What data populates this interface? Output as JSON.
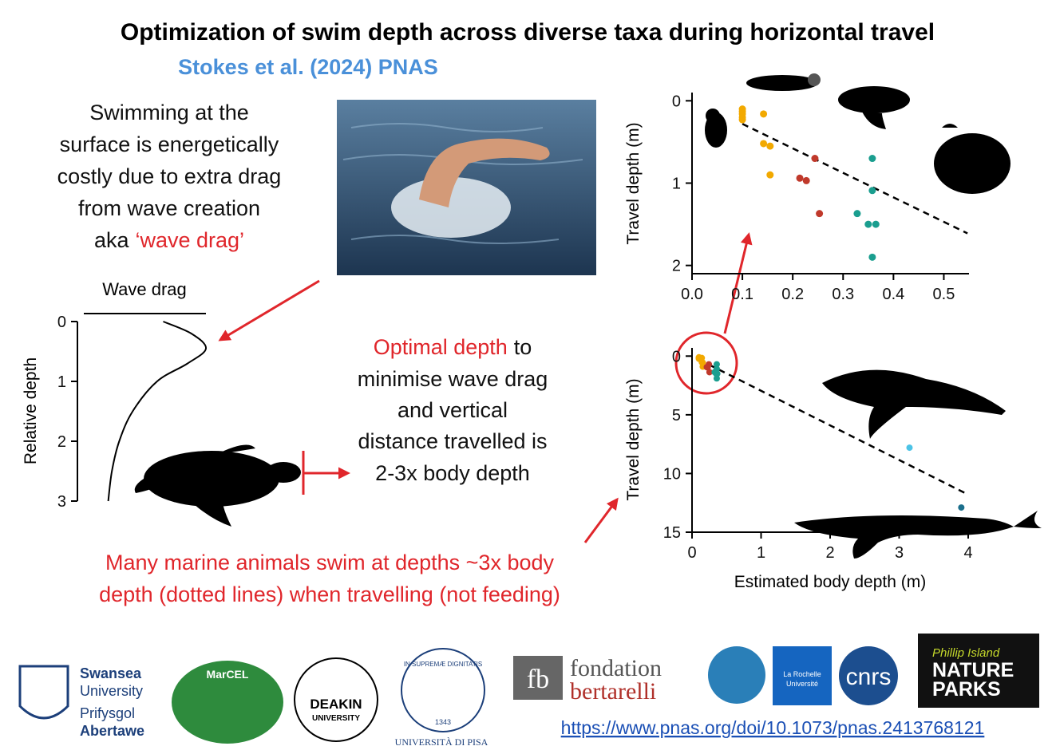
{
  "header": {
    "title": "Optimization of swim depth across diverse taxa during horizontal travel",
    "subtitle": "Stokes et al. (2024) PNAS"
  },
  "intro": {
    "lines": [
      "Swimming at the",
      "surface is energetically",
      "costly due to extra drag",
      "from wave creation",
      "aka"
    ],
    "highlight": "‘wave drag’"
  },
  "optimal": {
    "highlight": "Optimal depth",
    "lines": [
      "to",
      "minimise wave drag",
      "and vertical",
      "distance travelled is",
      "2-3x body depth"
    ]
  },
  "finding": {
    "lines": [
      "Many marine animals swim at depths ~3x body",
      "depth (dotted lines) when travelling (not feeding)"
    ]
  },
  "logos": {
    "swansea": [
      "Swansea",
      "University",
      "Prifysgol",
      "Abertawe"
    ],
    "marcel": "MarCEL",
    "deakin": [
      "DEAKIN",
      "UNIVERSITY"
    ],
    "pisa": [
      "IN SUPREMÆ DIGNITATIS",
      "1343",
      "UNIVERSITÀ DI PISA"
    ],
    "bertarelli": [
      "fb",
      "fondation",
      "bertarelli"
    ],
    "larochelle": [
      "La Rochelle",
      "Université"
    ],
    "cnrs": "cnrs",
    "phillip": [
      "Phillip Island",
      "NATURE",
      "PARKS"
    ]
  },
  "link": "https://www.pnas.org/doi/10.1073/pnas.2413768121",
  "chart_data": [
    {
      "type": "line",
      "title": "Wave drag",
      "y_label": "Relative depth",
      "color": "#000000",
      "x": [
        0.65,
        0.88,
        1.0,
        0.85,
        0.6,
        0.4,
        0.29,
        0.23,
        0.2
      ],
      "values": [
        0,
        0.2,
        0.45,
        0.7,
        1,
        1.5,
        2,
        2.5,
        3
      ],
      "xlim": [
        0,
        1
      ],
      "ylim": [
        0,
        3
      ],
      "yticks": [
        0,
        1,
        2,
        3
      ],
      "y_inverted": true
    },
    {
      "type": "scatter",
      "y_label": "Travel depth (m)",
      "xlim": [
        0,
        0.55
      ],
      "ylim": [
        -0.1,
        2.1
      ],
      "xticks": [
        {
          "value": 0,
          "label": "0.0"
        },
        0.1,
        0.2,
        0.3,
        0.4,
        0.5
      ],
      "yticks": [
        0,
        1,
        2
      ],
      "y_inverted": true,
      "series": [
        {
          "color": "#f2a900",
          "x": [
            0.1,
            0.1,
            0.1,
            0.1,
            0.1,
            0.142,
            0.142,
            0.155,
            0.155
          ],
          "values": [
            0.1,
            0.13,
            0.16,
            0.2,
            0.23,
            0.16,
            0.52,
            0.55,
            0.9
          ]
        },
        {
          "color": "#c0392b",
          "x": [
            0.244,
            0.214,
            0.227,
            0.253
          ],
          "values": [
            0.7,
            0.94,
            0.97,
            1.37
          ]
        },
        {
          "color": "#1a9e8f",
          "x": [
            0.358,
            0.358,
            0.328,
            0.35,
            0.365,
            0.358
          ],
          "values": [
            0.7,
            1.09,
            1.37,
            1.5,
            1.5,
            1.9
          ]
        }
      ],
      "fit": {
        "color": "#000000",
        "x": [
          0.1,
          0.547
        ],
        "values": [
          0.28,
          1.61
        ]
      }
    },
    {
      "type": "scatter",
      "y_label": "Travel depth (m)",
      "x_label": "Estimated body depth (m)",
      "xlim": [
        0,
        4
      ],
      "ylim": [
        -0.7,
        15
      ],
      "xticks": [
        0,
        1,
        2,
        3,
        4
      ],
      "yticks": [
        0,
        5,
        10,
        15
      ],
      "y_inverted": true,
      "series": [
        {
          "color": "#f2a900",
          "x": [
            0.1,
            0.1,
            0.1,
            0.1,
            0.1,
            0.142,
            0.142,
            0.155,
            0.155
          ],
          "values": [
            0.1,
            0.13,
            0.16,
            0.2,
            0.23,
            0.16,
            0.52,
            0.55,
            0.9
          ]
        },
        {
          "color": "#c0392b",
          "x": [
            0.244,
            0.214,
            0.227,
            0.253
          ],
          "values": [
            0.7,
            0.94,
            0.97,
            1.37
          ]
        },
        {
          "color": "#1a9e8f",
          "x": [
            0.358,
            0.358,
            0.328,
            0.35,
            0.365,
            0.358
          ],
          "values": [
            0.7,
            1.09,
            1.37,
            1.5,
            1.5,
            1.9
          ]
        },
        {
          "color": "#4cc3e6",
          "x": [
            3.15
          ],
          "values": [
            7.8
          ]
        },
        {
          "color": "#1b6f8c",
          "x": [
            3.9
          ],
          "values": [
            12.9
          ]
        }
      ],
      "fit": {
        "color": "#000000",
        "x": [
          0.1,
          4.0
        ],
        "values": [
          0.3,
          11.8
        ]
      }
    }
  ]
}
